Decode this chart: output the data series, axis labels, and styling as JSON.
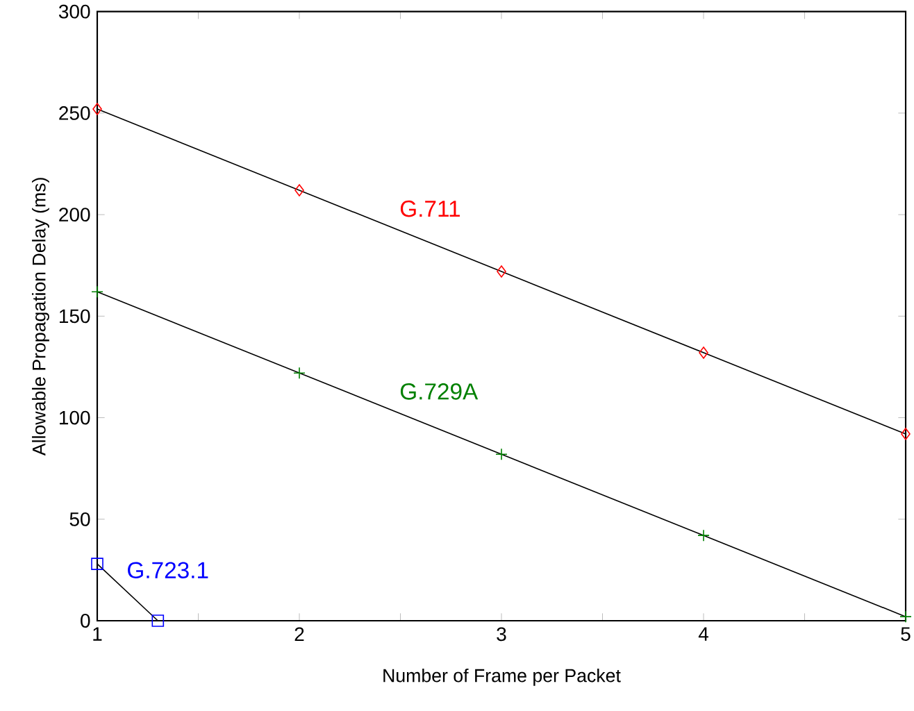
{
  "chart_data": {
    "type": "line",
    "xlabel": "Number of Frame per Packet",
    "ylabel": "Allowable Propagation Delay (ms)",
    "xlim": [
      1,
      5
    ],
    "ylim": [
      0,
      300
    ],
    "xticks": [
      1,
      {
        "value": 1.5,
        "label": null
      },
      2,
      {
        "value": 2.5,
        "label": null
      },
      3,
      {
        "value": 3.5,
        "label": null
      },
      4,
      {
        "value": 4.5,
        "label": null
      },
      5
    ],
    "yticks": [
      0,
      50,
      100,
      150,
      200,
      250,
      300
    ],
    "grid": false,
    "line_style": "solid",
    "series": [
      {
        "name": "G.711",
        "color": "#ff0000",
        "marker": "diamond",
        "x": [
          1,
          2,
          3,
          4,
          5
        ],
        "values": [
          252,
          212,
          172,
          132,
          92
        ]
      },
      {
        "name": "G.729A",
        "color": "#008000",
        "marker": "cross",
        "x": [
          1,
          2,
          3,
          4,
          5
        ],
        "values": [
          162,
          122,
          82,
          42,
          2
        ]
      },
      {
        "name": "G.723.1",
        "color": "#0000ff",
        "marker": "square",
        "x": [
          1,
          1.3
        ],
        "values": [
          28,
          0
        ]
      }
    ]
  }
}
